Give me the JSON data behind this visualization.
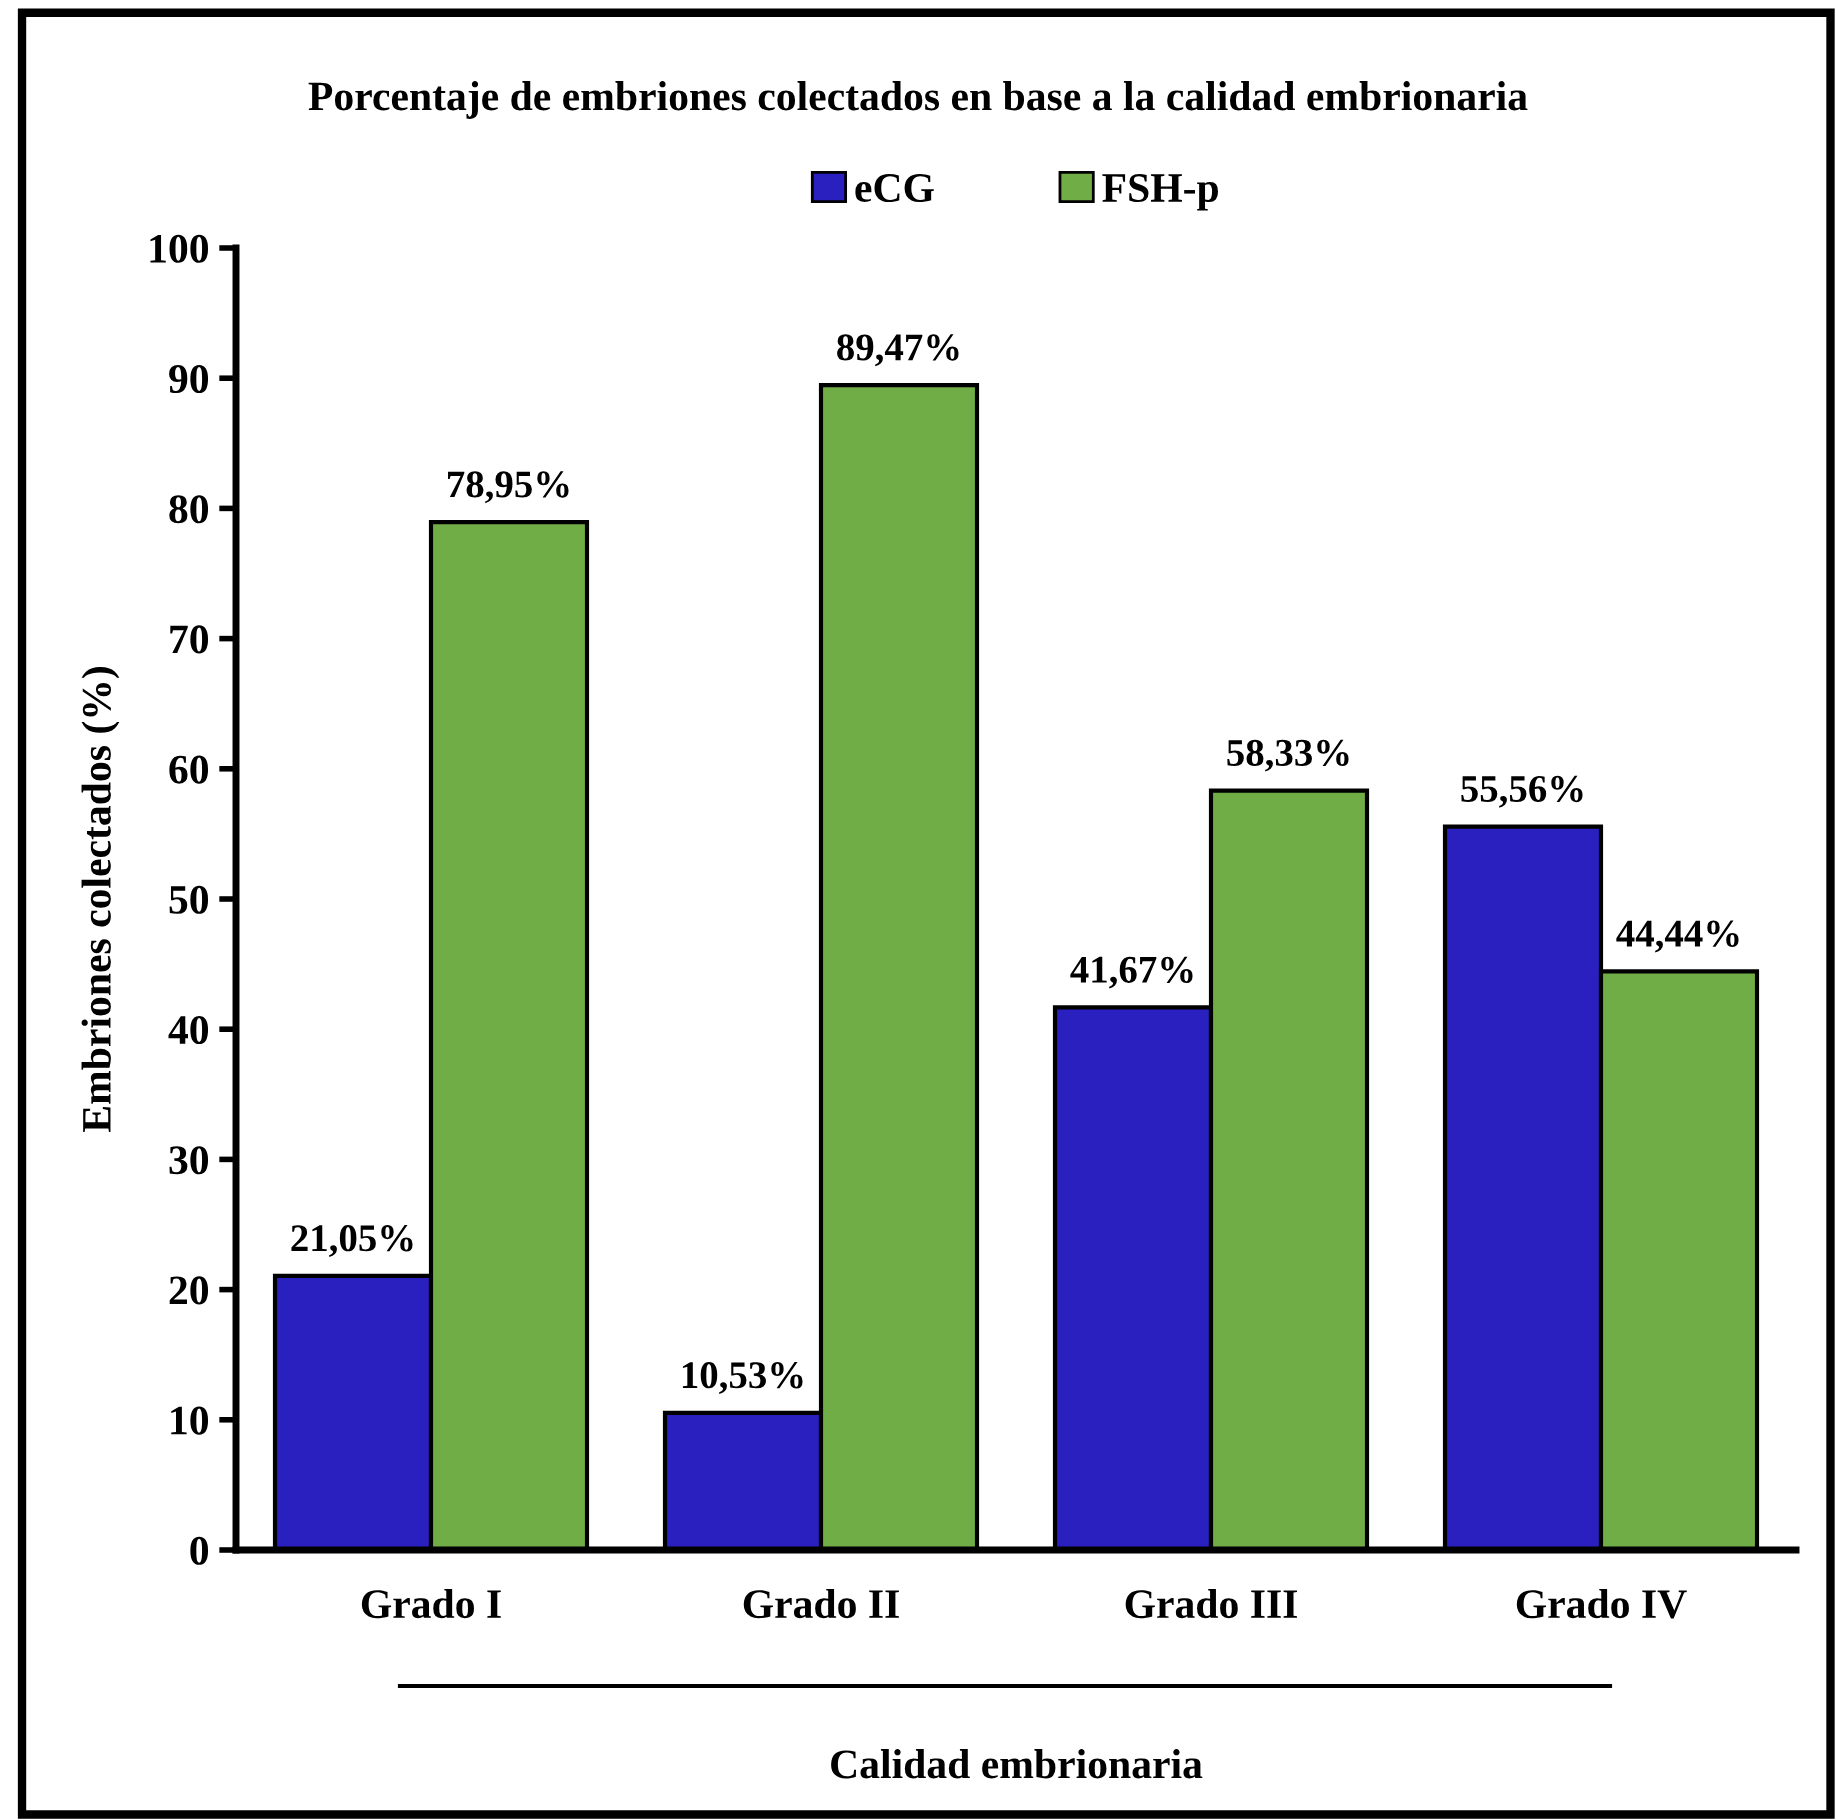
{
  "chart_data": {
    "type": "bar",
    "title": "Porcentaje de embriones colectados en base a la calidad embrionaria",
    "xlabel": "Calidad embrionaria",
    "ylabel": "Embriones colectados (%)",
    "categories": [
      "Grado I",
      "Grado II",
      "Grado III",
      "Grado IV"
    ],
    "series": [
      {
        "name": "eCG",
        "color": "#2a1fbf",
        "values": [
          21.05,
          10.53,
          41.67,
          55.56
        ],
        "value_labels": [
          "21,05%",
          "10,53%",
          "41,67%",
          "55,56%"
        ]
      },
      {
        "name": "FSH-p",
        "color": "#70ad47",
        "values": [
          78.95,
          89.47,
          58.33,
          44.44
        ],
        "value_labels": [
          "78,95%",
          "89,47%",
          "58,33%",
          "44,44%"
        ]
      }
    ],
    "ylim": [
      0,
      100
    ],
    "yticks": [
      0,
      10,
      20,
      30,
      40,
      50,
      60,
      70,
      80,
      90,
      100
    ],
    "grid": false,
    "legend": "top"
  }
}
